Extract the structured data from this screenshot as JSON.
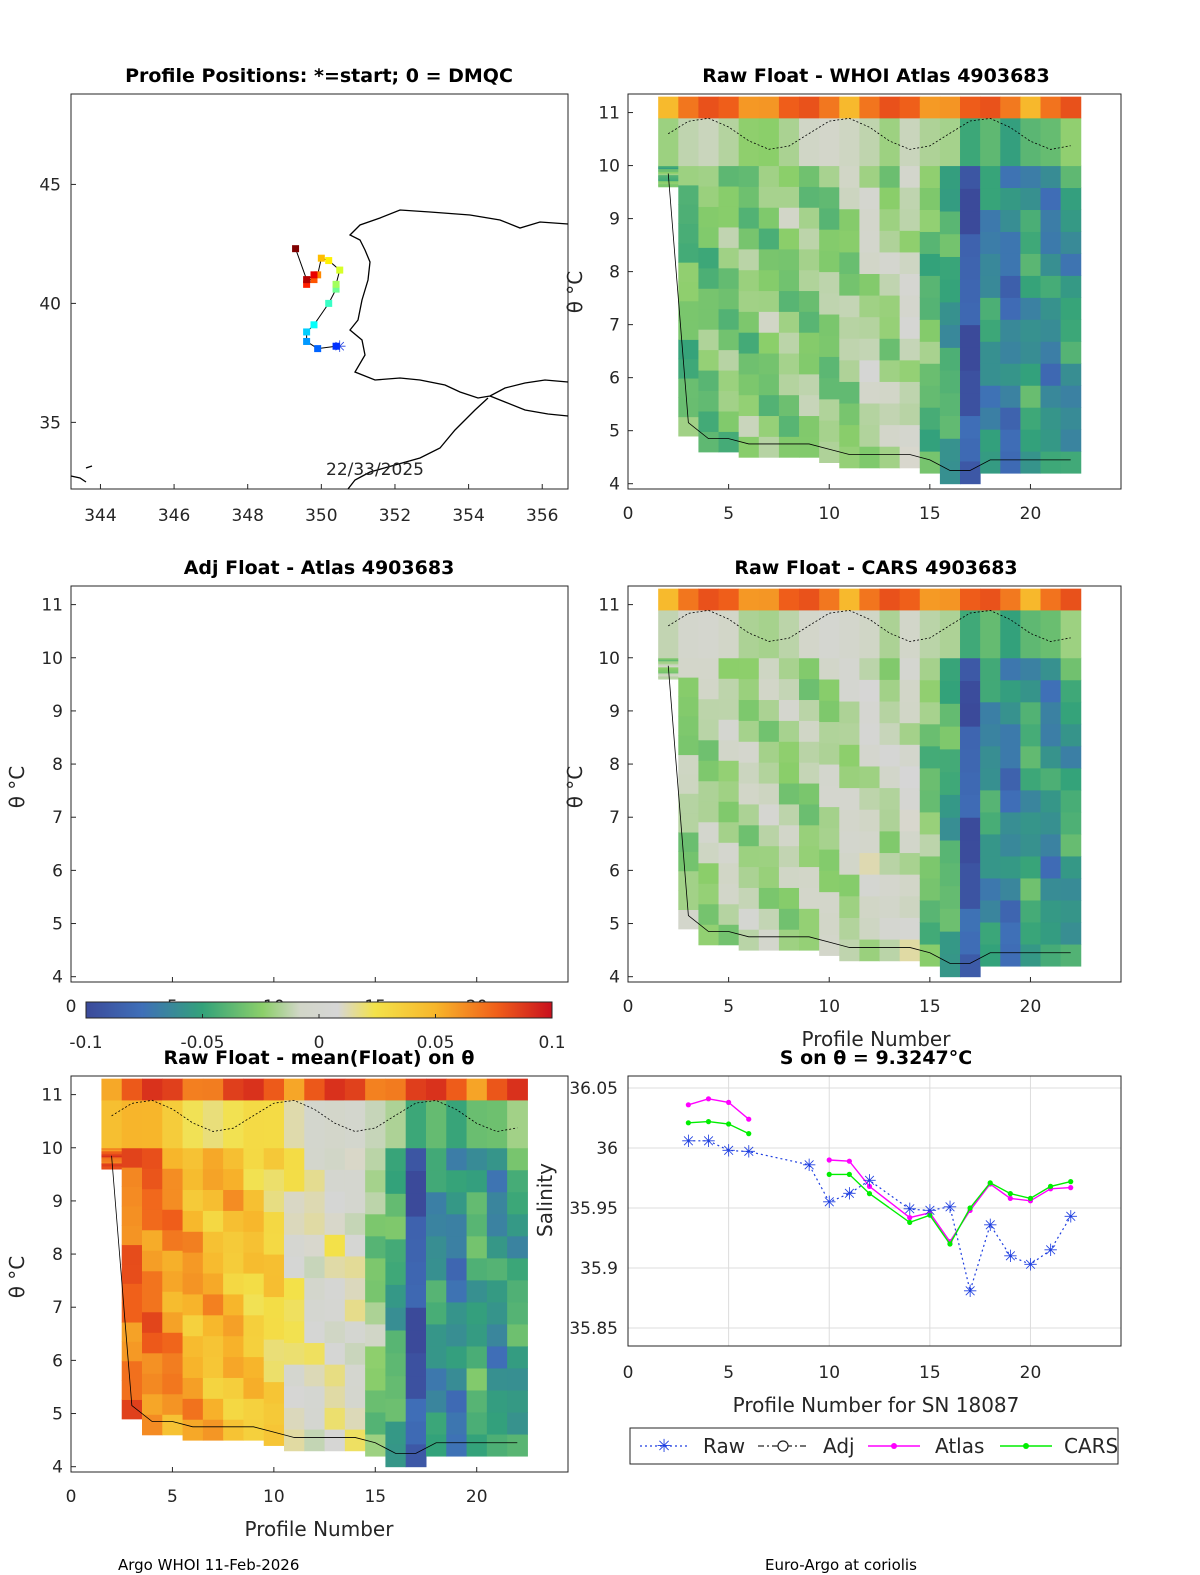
{
  "colors": {
    "raw": "#1f3fe0",
    "adj": "#222222",
    "atlas": "#ff00ff",
    "cars": "#00ee00",
    "coast": "#000000"
  },
  "footer": {
    "left": "Argo WHOI 11-Feb-2026",
    "right": "Euro-Argo at coriolis"
  },
  "map": {
    "title": "Profile Positions: *=start; 0 = DMQC",
    "date_label": "22/33/2025",
    "xticks": [
      344,
      346,
      348,
      350,
      352,
      354,
      356
    ],
    "yticks": [
      35,
      40,
      45
    ],
    "xlim": [
      343.2,
      356.7
    ],
    "ylim": [
      32.2,
      48.8
    ]
  },
  "raw_whoi": {
    "title": "Raw Float - WHOI Atlas  4903683",
    "ylabel": "θ °C",
    "xlabel": ""
  },
  "adj_atlas": {
    "title": "Adj Float - Atlas  4903683",
    "ylabel": "θ °C",
    "xlabel": ""
  },
  "raw_cars": {
    "title": "Raw Float - CARS  4903683",
    "ylabel": "θ °C",
    "xlabel": "Profile Number"
  },
  "raw_mean": {
    "title": "Raw Float - mean(Float) on θ",
    "ylabel": "θ °C",
    "xlabel": "Profile Number"
  },
  "colorbar": {
    "ticks": [
      "-0.1",
      "-0.05",
      "0",
      "0.05",
      "0.1"
    ],
    "range": [
      -0.1,
      0.1
    ]
  },
  "section_axes": {
    "xticks": [
      0,
      5,
      10,
      15,
      20
    ],
    "yticks": [
      4,
      5,
      6,
      7,
      8,
      9,
      10,
      11
    ],
    "xlim": [
      0,
      24.5
    ],
    "ylim": [
      3.9,
      11.35
    ]
  },
  "chart_data": [
    {
      "type": "scatter",
      "name": "profile-positions",
      "title": "Profile Positions: *=start; 0 = DMQC",
      "xlabel": "",
      "ylabel": "",
      "xlim": [
        343.2,
        356.7
      ],
      "ylim": [
        32.2,
        48.8
      ],
      "track": {
        "lon": [
          350.5,
          350.4,
          349.9,
          349.6,
          349.6,
          349.8,
          350.2,
          350.4,
          350.4,
          350.5,
          350.2,
          350.0,
          349.9,
          349.8,
          349.6,
          349.8,
          349.6,
          349.3
        ],
        "lat": [
          38.2,
          38.2,
          38.1,
          38.4,
          38.8,
          39.1,
          40.0,
          40.6,
          40.8,
          41.4,
          41.8,
          41.9,
          41.2,
          41.0,
          40.8,
          41.2,
          41.0,
          42.3
        ]
      }
    },
    {
      "type": "line",
      "name": "salinity-on-theta",
      "title": "S on θ = 9.3247°C",
      "xlabel": "Profile Number for SN 18087",
      "ylabel": "Salinity",
      "xlim": [
        0,
        24.5
      ],
      "ylim": [
        35.835,
        36.06
      ],
      "xticks": [
        0,
        5,
        10,
        15,
        20
      ],
      "yticks": [
        35.85,
        35.9,
        35.95,
        36,
        36.05
      ],
      "ytick_labels": [
        "35.85",
        "35.9",
        "35.95",
        "36",
        "36.05"
      ],
      "legend_position": "bottom-outside",
      "series": [
        {
          "name": "Raw",
          "style": "dotted-asterisk",
          "x": [
            3,
            4,
            5,
            6,
            9,
            10,
            11,
            12,
            14,
            15,
            16,
            17,
            18,
            19,
            20,
            21,
            22
          ],
          "y": [
            36.006,
            36.006,
            35.998,
            35.997,
            35.986,
            35.955,
            35.962,
            35.973,
            35.949,
            35.948,
            35.951,
            35.881,
            35.936,
            35.91,
            35.903,
            35.915,
            35.943
          ]
        },
        {
          "name": "Adj",
          "style": "dashdot-circle",
          "x": [],
          "y": []
        },
        {
          "name": "Atlas",
          "style": "solid-dot",
          "segments": [
            {
              "x": [
                3,
                4,
                5,
                6
              ],
              "y": [
                36.036,
                36.041,
                36.038,
                36.024
              ]
            },
            {
              "x": [
                10,
                11,
                12,
                14,
                15,
                16,
                17,
                18,
                19,
                20,
                21,
                22
              ],
              "y": [
                35.99,
                35.989,
                35.968,
                35.942,
                35.946,
                35.922,
                35.948,
                35.97,
                35.958,
                35.956,
                35.966,
                35.967
              ]
            }
          ]
        },
        {
          "name": "CARS",
          "style": "solid-dot",
          "segments": [
            {
              "x": [
                3,
                4,
                5,
                6
              ],
              "y": [
                36.021,
                36.022,
                36.02,
                36.012
              ]
            },
            {
              "x": [
                10,
                11,
                12,
                14,
                15,
                16,
                17,
                18,
                19,
                20,
                21,
                22
              ],
              "y": [
                35.978,
                35.978,
                35.962,
                35.938,
                35.944,
                35.92,
                35.95,
                35.971,
                35.962,
                35.958,
                35.968,
                35.972
              ]
            }
          ]
        }
      ]
    },
    {
      "type": "heatmap",
      "name": "raw-whoi-atlas",
      "title": "Raw Float - WHOI Atlas  4903683",
      "profiles": [
        2,
        3,
        4,
        5,
        6,
        7,
        8,
        9,
        10,
        11,
        12,
        13,
        14,
        15,
        16,
        17,
        18,
        19,
        20,
        21,
        22
      ],
      "theta_min": [
        9.6,
        4.9,
        4.6,
        4.6,
        4.5,
        4.5,
        4.5,
        4.5,
        4.4,
        4.3,
        4.3,
        4.3,
        4.3,
        4.2,
        4.0,
        4.0,
        4.2,
        4.2,
        4.2,
        4.2,
        4.2
      ],
      "values": [
        -0.035,
        -0.035,
        -0.032,
        -0.028,
        -0.028,
        -0.026,
        -0.025,
        -0.025,
        -0.026,
        -0.022,
        -0.012,
        -0.018,
        -0.008,
        -0.035,
        -0.048,
        -0.09,
        -0.058,
        -0.07,
        -0.052,
        -0.062,
        -0.055
      ],
      "top_value": 0.08
    },
    {
      "type": "heatmap",
      "name": "raw-cars",
      "title": "Raw Float - CARS  4903683",
      "profiles": [
        2,
        3,
        4,
        5,
        6,
        7,
        8,
        9,
        10,
        11,
        12,
        13,
        14,
        15,
        16,
        17,
        18,
        19,
        20,
        21,
        22
      ],
      "theta_min": [
        9.6,
        4.9,
        4.6,
        4.6,
        4.5,
        4.5,
        4.5,
        4.5,
        4.4,
        4.3,
        4.3,
        4.3,
        4.3,
        4.2,
        4.0,
        4.0,
        4.2,
        4.2,
        4.2,
        4.2,
        4.2
      ],
      "values": [
        -0.02,
        -0.02,
        -0.018,
        -0.015,
        -0.016,
        -0.015,
        -0.018,
        -0.02,
        -0.015,
        -0.012,
        -0.005,
        -0.012,
        -0.003,
        -0.03,
        -0.045,
        -0.088,
        -0.055,
        -0.068,
        -0.05,
        -0.06,
        -0.05
      ],
      "top_value": 0.08
    },
    {
      "type": "heatmap",
      "name": "raw-mean",
      "title": "Raw Float - mean(Float) on θ",
      "profiles": [
        2,
        3,
        4,
        5,
        6,
        7,
        8,
        9,
        10,
        11,
        12,
        13,
        14,
        15,
        16,
        17,
        18,
        19,
        20,
        21,
        22
      ],
      "theta_min": [
        9.6,
        4.9,
        4.6,
        4.6,
        4.5,
        4.5,
        4.5,
        4.5,
        4.4,
        4.3,
        4.3,
        4.3,
        4.3,
        4.2,
        4.0,
        4.0,
        4.2,
        4.2,
        4.2,
        4.2,
        4.2
      ],
      "values": [
        0.075,
        0.07,
        0.068,
        0.06,
        0.052,
        0.048,
        0.045,
        0.038,
        0.032,
        0.015,
        0.005,
        0.008,
        0.005,
        -0.025,
        -0.045,
        -0.09,
        -0.055,
        -0.065,
        -0.045,
        -0.058,
        -0.048
      ],
      "top_value": 0.09
    }
  ]
}
